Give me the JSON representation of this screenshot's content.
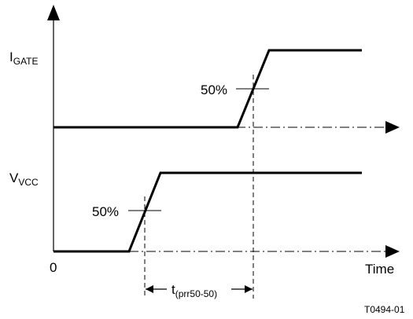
{
  "diagram": {
    "signals": [
      {
        "main": "I",
        "sub": "GATE"
      },
      {
        "main": "V",
        "sub": "VCC"
      }
    ],
    "axis": {
      "origin_label": "0",
      "x_label": "Time"
    },
    "gate_threshold_label": "50%",
    "vcc_threshold_label": "50%",
    "interval": {
      "main": "t",
      "sub": "(prr50-50)"
    },
    "figure_id": "T0494-01"
  }
}
